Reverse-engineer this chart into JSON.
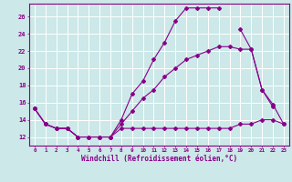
{
  "xlabel": "Windchill (Refroidissement éolien,°C)",
  "background_color": "#cce8e8",
  "grid_color": "#ffffff",
  "line_color": "#880088",
  "x_hours": [
    0,
    1,
    2,
    3,
    4,
    5,
    6,
    7,
    8,
    9,
    10,
    11,
    12,
    13,
    14,
    15,
    16,
    17,
    18,
    19,
    20,
    21,
    22,
    23
  ],
  "series1": [
    15.3,
    13.5,
    13.0,
    13.0,
    12.0,
    12.0,
    12.0,
    12.0,
    14.0,
    17.0,
    18.5,
    21.0,
    23.0,
    25.5,
    27.0,
    27.0,
    27.0,
    27.0,
    null,
    24.5,
    22.2,
    17.5,
    15.5,
    null
  ],
  "series2": [
    15.3,
    13.5,
    13.0,
    13.0,
    12.0,
    12.0,
    12.0,
    12.0,
    13.0,
    13.0,
    13.0,
    13.0,
    13.0,
    13.0,
    13.0,
    13.0,
    13.0,
    13.0,
    13.0,
    13.5,
    13.5,
    14.0,
    14.0,
    13.5
  ],
  "series3": [
    15.3,
    13.5,
    13.0,
    13.0,
    12.0,
    12.0,
    12.0,
    12.0,
    13.5,
    15.0,
    16.5,
    17.5,
    19.0,
    20.0,
    21.0,
    21.5,
    22.0,
    22.5,
    22.5,
    22.2,
    22.2,
    17.5,
    15.8,
    13.5
  ],
  "ylim": [
    11.0,
    27.5
  ],
  "yticks": [
    12,
    14,
    16,
    18,
    20,
    22,
    24,
    26
  ],
  "xlim": [
    -0.5,
    23.5
  ],
  "figsize": [
    3.2,
    2.0
  ],
  "dpi": 100
}
